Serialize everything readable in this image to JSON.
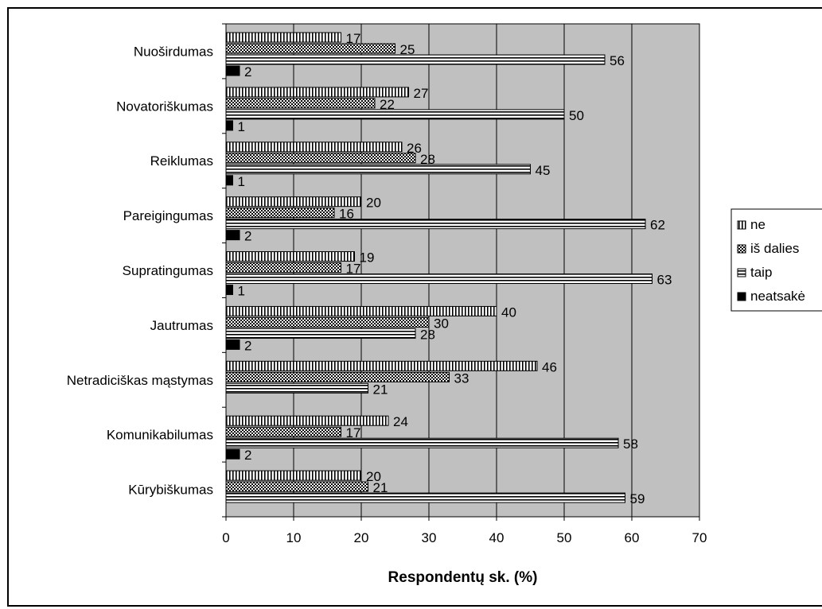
{
  "chart_data": {
    "type": "bar",
    "orientation": "horizontal",
    "categories": [
      "Nuoširdumas",
      "Novatoriškumas",
      "Reiklumas",
      "Pareigingumas",
      "Supratingumas",
      "Jautrumas",
      "Netradiciškas mąstymas",
      "Komunikabilumas",
      "Kūrybiškumas"
    ],
    "series": [
      {
        "name": "ne",
        "pattern": "vertical-lines",
        "values": [
          17,
          27,
          26,
          20,
          19,
          40,
          46,
          24,
          20
        ]
      },
      {
        "name": "iš dalies",
        "pattern": "checker",
        "values": [
          25,
          22,
          28,
          16,
          17,
          30,
          33,
          17,
          21
        ]
      },
      {
        "name": "taip",
        "pattern": "horizontal-lines",
        "values": [
          56,
          50,
          45,
          62,
          63,
          28,
          21,
          58,
          59
        ]
      },
      {
        "name": "neatsakė",
        "pattern": "solid-black",
        "values": [
          2,
          1,
          1,
          2,
          1,
          2,
          0,
          2,
          0
        ]
      }
    ],
    "value_labels": [
      [
        "17",
        "25",
        "56",
        "2"
      ],
      [
        "27",
        "22",
        "50",
        "1"
      ],
      [
        "26",
        "28",
        "45",
        "1"
      ],
      [
        "20",
        "16",
        "62",
        "2"
      ],
      [
        "19",
        "17",
        "63",
        "1"
      ],
      [
        "40",
        "30",
        "28",
        "2"
      ],
      [
        "46",
        "33",
        "21",
        ""
      ],
      [
        "24",
        "17",
        "58",
        "2"
      ],
      [
        "20",
        "21",
        "59",
        ""
      ]
    ],
    "xlabel": "Respondentų sk. (%)",
    "ylabel": "",
    "xlim": [
      0,
      70
    ],
    "xticks": [
      0,
      10,
      20,
      30,
      40,
      50,
      60,
      70
    ],
    "plot_background": "#c0c0c0",
    "grid": true,
    "legend_position": "right"
  }
}
